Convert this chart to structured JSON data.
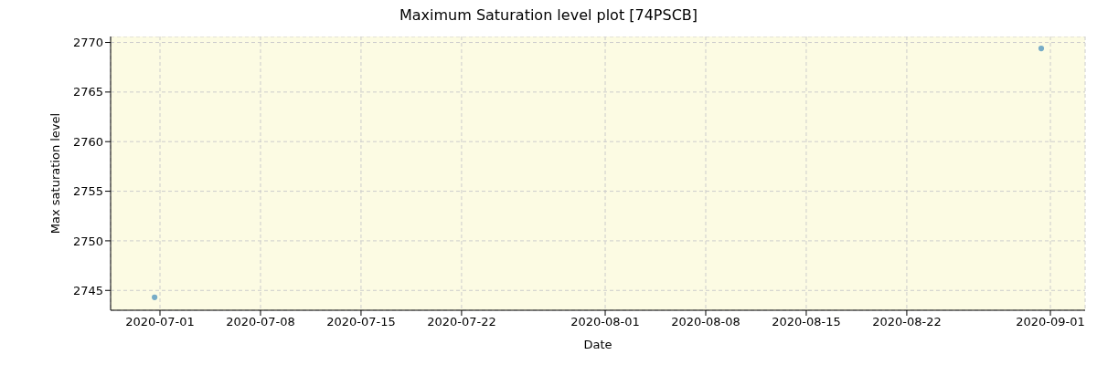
{
  "chart_data": {
    "type": "scatter",
    "title": "Maximum Saturation level plot [74PSCB]",
    "xlabel": "Date",
    "ylabel": "Max saturation level",
    "x": [
      "2020-06-30T15:00",
      "2020-08-31T08:40"
    ],
    "values": [
      2744.3,
      2769.4
    ],
    "color": "#77acc7",
    "marker": "circle",
    "xlim": [
      "2020-06-27T13:30",
      "2020-09-03T10:00"
    ],
    "xticks": [
      "2020-07-01",
      "2020-07-08",
      "2020-07-15",
      "2020-07-22",
      "2020-08-01",
      "2020-08-08",
      "2020-08-15",
      "2020-08-22",
      "2020-09-01"
    ],
    "ylim": [
      2743,
      2770.6
    ],
    "yticks": [
      2745,
      2750,
      2755,
      2760,
      2765,
      2770
    ],
    "grid": true
  }
}
